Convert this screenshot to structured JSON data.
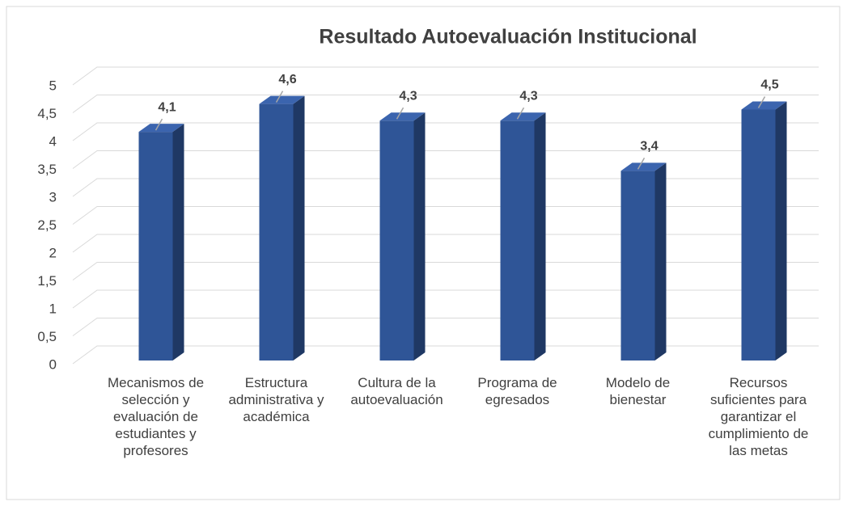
{
  "chart_data": {
    "type": "bar3d",
    "title": "Resultado Autoevaluación Institucional",
    "categories": [
      "Mecanismos de selección y evaluación de estudiantes y profesores",
      "Estructura administrativa y académica",
      "Cultura de la autoevaluación",
      "Programa de egresados",
      "Modelo de bienestar",
      "Recursos suficientes para garantizar el cumplimiento de las metas"
    ],
    "values": [
      4.1,
      4.6,
      4.3,
      4.3,
      3.4,
      4.5
    ],
    "value_labels": [
      "4,1",
      "4,6",
      "4,3",
      "4,3",
      "3,4",
      "4,5"
    ],
    "color": "#2f5597",
    "ylim": [
      0,
      5
    ],
    "yticks": [
      0,
      {
        "value": 0.5,
        "label": "0,5"
      },
      1,
      {
        "value": 1.5,
        "label": "1,5"
      },
      2,
      {
        "value": 2.5,
        "label": "2,5"
      },
      3,
      {
        "value": 3.5,
        "label": "3,5"
      },
      4,
      {
        "value": 4.5,
        "label": "4,5"
      },
      5
    ],
    "grid": true
  }
}
